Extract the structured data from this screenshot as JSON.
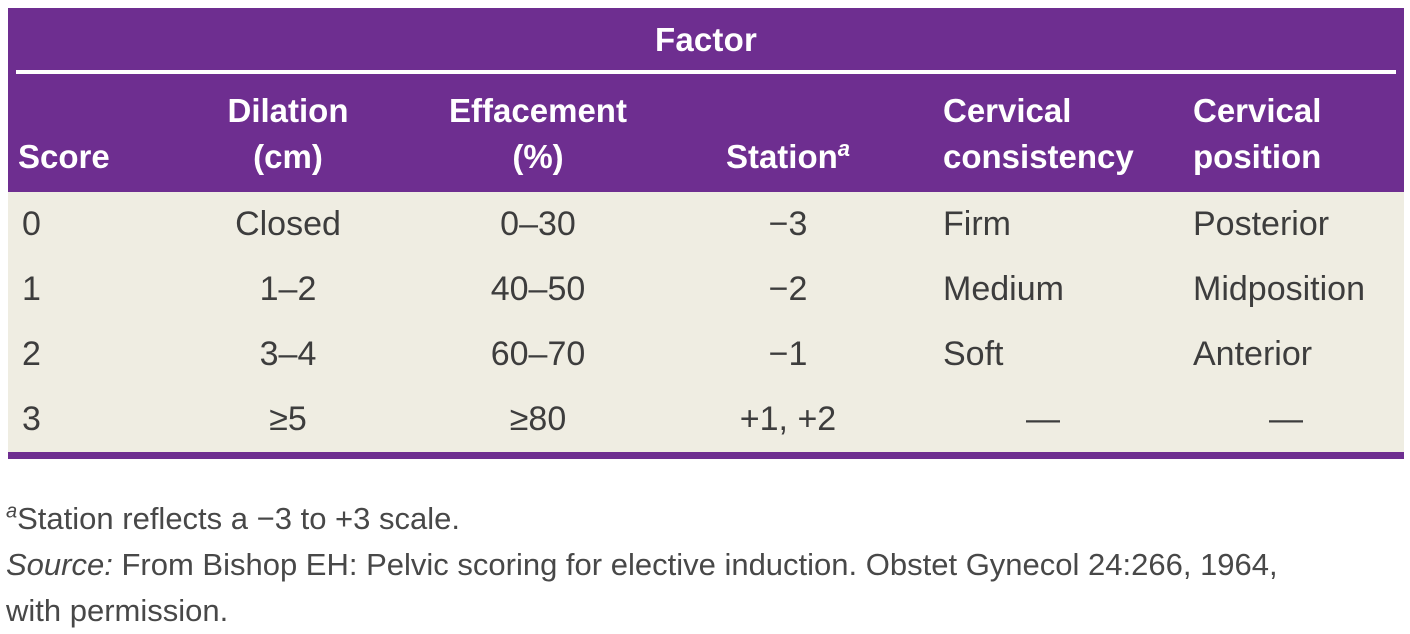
{
  "colors": {
    "header_purple": "#6E2E90",
    "body_cream": "#EFEDE2",
    "header_text": "#FFFFFF",
    "body_text": "#3D3D3D",
    "footnote_text": "#484848"
  },
  "table": {
    "factor_label": "Factor",
    "columns": [
      {
        "line1": "Score",
        "line2": ""
      },
      {
        "line1": "Dilation",
        "line2": "(cm)"
      },
      {
        "line1": "Effacement",
        "line2": "(%)"
      },
      {
        "line1": "Station",
        "sup": "a",
        "line2": ""
      },
      {
        "line1": "Cervical",
        "line2": "consistency"
      },
      {
        "line1": "Cervical",
        "line2": "position"
      }
    ],
    "rows": [
      [
        "0",
        "Closed",
        "0–30",
        "−3",
        "Firm",
        "Posterior"
      ],
      [
        "1",
        "1–2",
        "40–50",
        "−2",
        "Medium",
        "Midposition"
      ],
      [
        "2",
        "3–4",
        "60–70",
        "−1",
        "Soft",
        "Anterior"
      ],
      [
        "3",
        "≥5",
        "≥80",
        "+1, +2",
        "—",
        "—"
      ]
    ]
  },
  "footnotes": {
    "note_marker": "a",
    "note_text": "Station reflects a −3 to +3 scale.",
    "source_label": "Source:",
    "source_text": " From Bishop EH: Pelvic scoring for elective induction. Obstet Gynecol 24:266, 1964, with permission."
  }
}
